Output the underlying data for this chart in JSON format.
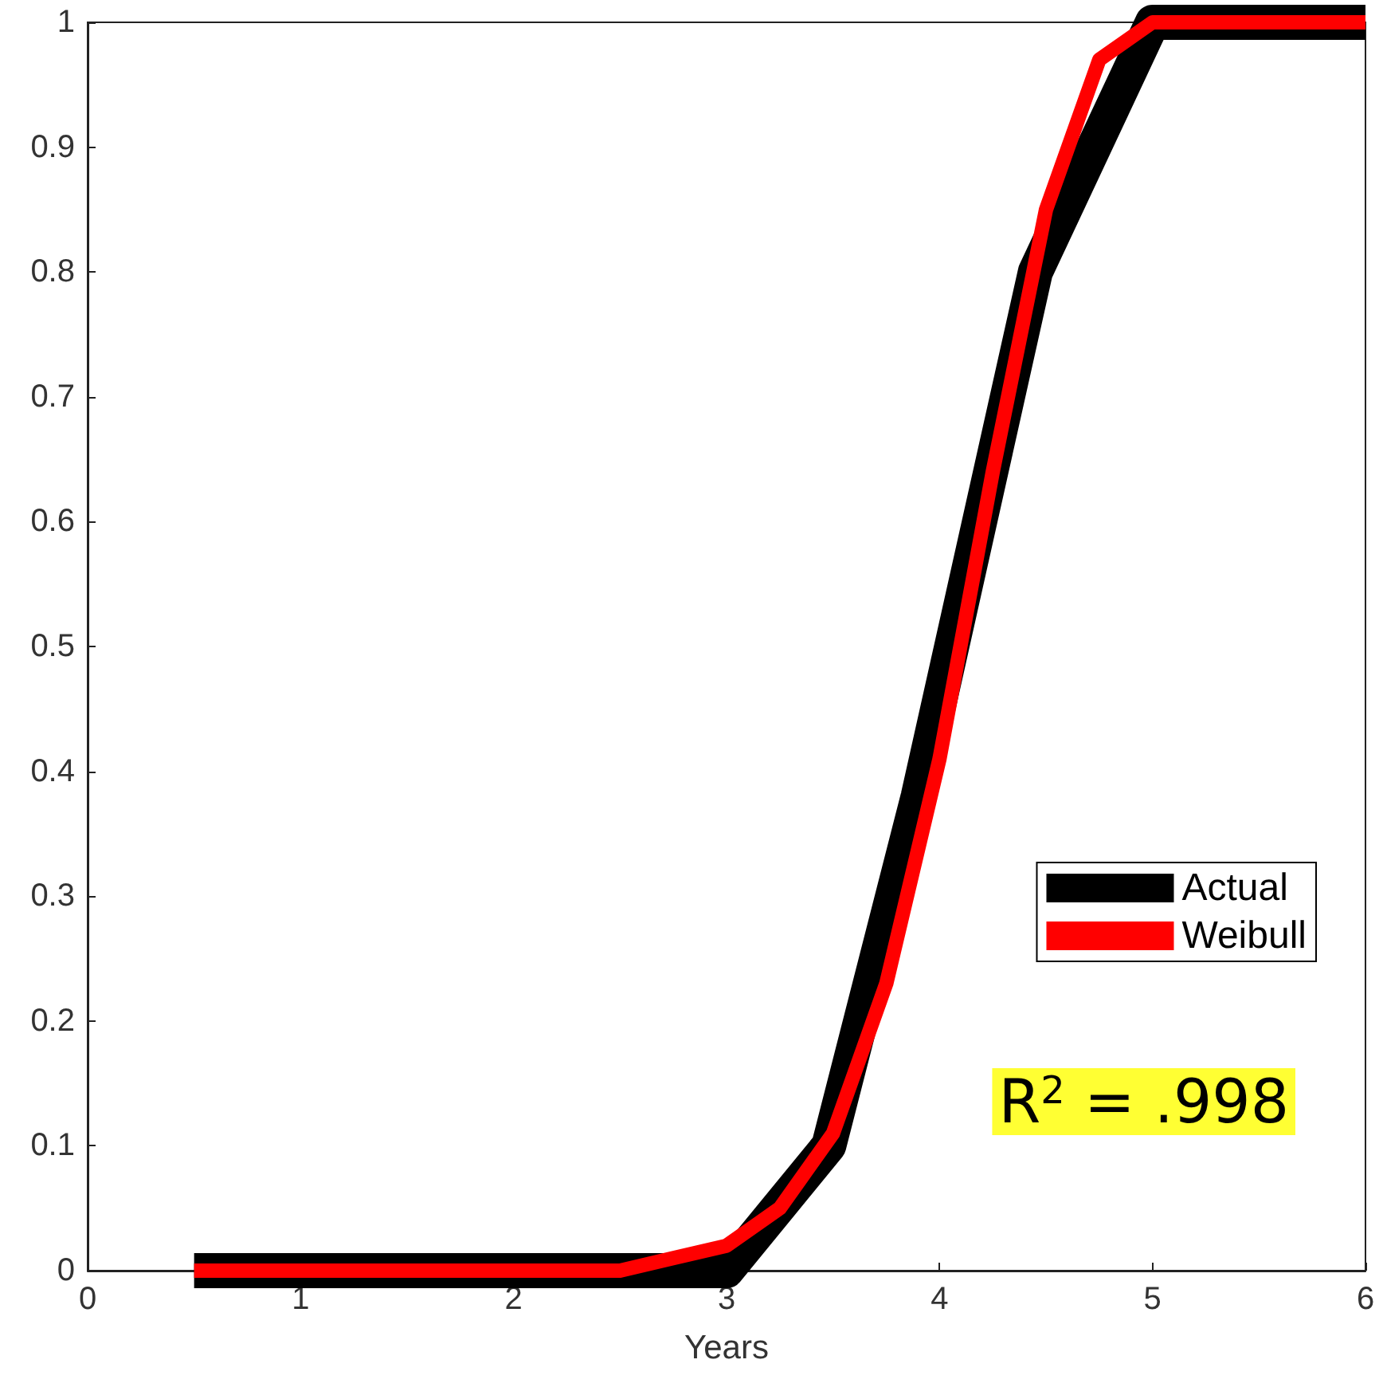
{
  "chart_data": {
    "type": "line",
    "xlabel": "Years",
    "xlim": [
      0,
      6
    ],
    "xticks": [
      0,
      1,
      2,
      3,
      4,
      5,
      6
    ],
    "ylim": [
      0,
      1
    ],
    "yticks": [
      0,
      0.1,
      0.2,
      0.3,
      0.4,
      0.5,
      0.6,
      0.7,
      0.8,
      0.9,
      1
    ],
    "grid": false,
    "legend": "right",
    "line_style": "solid",
    "series": [
      {
        "name": "Actual",
        "color": "#000000",
        "x": [
          0.5,
          3,
          3.48,
          3.9,
          4.45,
          5,
          6
        ],
        "values": [
          0,
          0,
          0.1,
          0.38,
          0.8,
          1,
          1
        ]
      },
      {
        "name": "Weibull",
        "color": "#ff0000",
        "x": [
          0.5,
          1,
          1.5,
          2,
          2.5,
          2.75,
          3,
          3.25,
          3.5,
          3.75,
          4,
          4.25,
          4.5,
          4.75,
          5,
          5.5,
          6
        ],
        "values": [
          0,
          0,
          0,
          0,
          0,
          0.01,
          0.02,
          0.05,
          0.11,
          0.23,
          0.41,
          0.64,
          0.85,
          0.97,
          1,
          1,
          1
        ]
      }
    ],
    "annotations": [
      "R$^{2}$ = .998"
    ]
  }
}
